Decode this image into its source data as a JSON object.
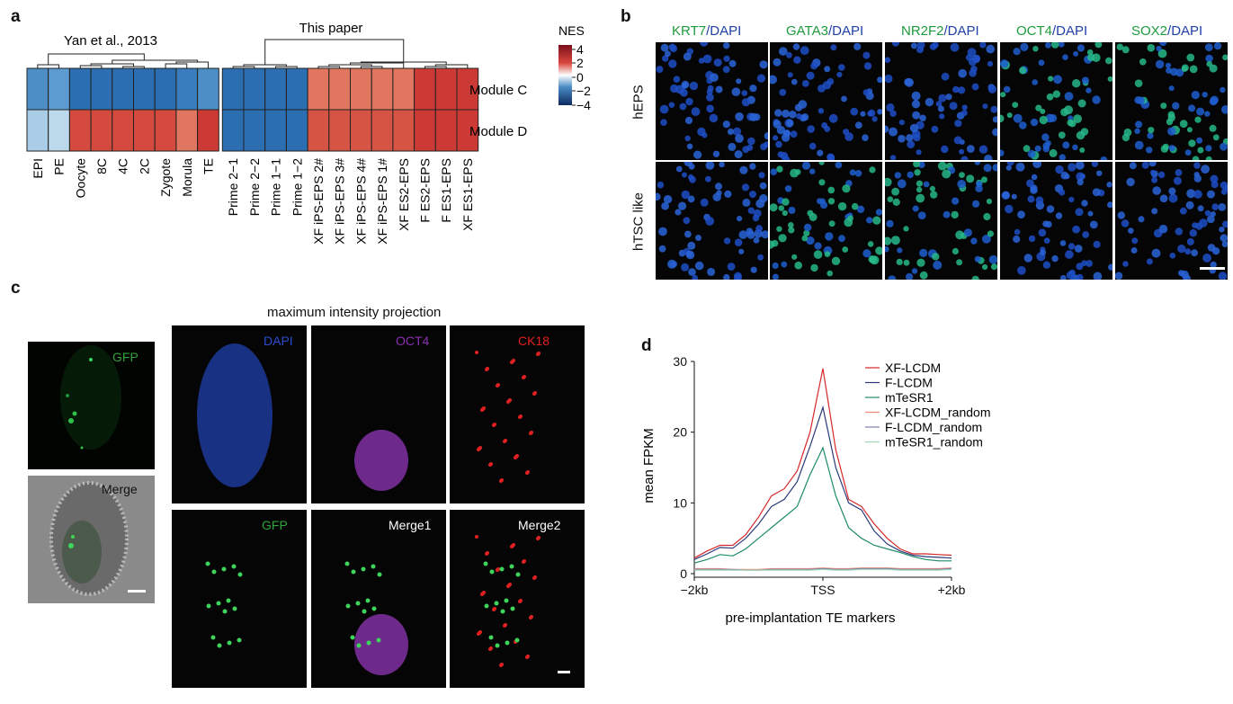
{
  "panels": {
    "a": "a",
    "b": "b",
    "c": "c",
    "d": "d"
  },
  "heatmap": {
    "group1_title": "Yan et al., 2013",
    "group2_title": "This paper",
    "rows": [
      "Module C",
      "Module D"
    ],
    "columns": [
      "EPI",
      "PE",
      "Oocyte",
      "8C",
      "4C",
      "2C",
      "Zygote",
      "Morula",
      "TE",
      "Prime 2−1",
      "Prime 2−2",
      "Prime 1−1",
      "Prime 1−2",
      "XF iPS-EPS 2#",
      "XF iPS-EPS 3#",
      "XF iPS-EPS 4#",
      "XF iPS-EPS 1#",
      "XF ES2-EPS",
      "F ES2-EPS",
      "F ES1-EPS",
      "XF ES1-EPS"
    ],
    "legend_title": "NES",
    "legend_ticks": [
      "4",
      "2",
      "0",
      "−2",
      "−4"
    ],
    "colors": {
      "moduleC": [
        "#4e8ec6",
        "#5c9cd0",
        "#2b6fb2",
        "#2b6fb2",
        "#2b6fb2",
        "#2b6fb2",
        "#2b6fb2",
        "#3a7dbd",
        "#4e8ec6",
        "#2b6fb2",
        "#2b6fb2",
        "#2b6fb2",
        "#2b6fb2",
        "#e0765f",
        "#e0765f",
        "#e0765f",
        "#e0765f",
        "#e0765f",
        "#cc3a35",
        "#cc3a35",
        "#cc3a35"
      ],
      "moduleD": [
        "#a9cde6",
        "#bcd9ec",
        "#d44a3f",
        "#d44a3f",
        "#d44a3f",
        "#d44a3f",
        "#d44a3f",
        "#e0765f",
        "#cc3a35",
        "#2b6fb2",
        "#2b6fb2",
        "#2b6fb2",
        "#2b6fb2",
        "#d65443",
        "#d65443",
        "#d65443",
        "#d65443",
        "#d65443",
        "#cc3a35",
        "#cc3a35",
        "#cc3a35"
      ]
    }
  },
  "panel_b": {
    "columns": [
      {
        "marker": "KRT7",
        "dapi": "/DAPI"
      },
      {
        "marker": "GATA3",
        "dapi": "/DAPI"
      },
      {
        "marker": "NR2F2",
        "dapi": "/DAPI"
      },
      {
        "marker": "OCT4",
        "dapi": "/DAPI"
      },
      {
        "marker": "SOX2",
        "dapi": "/DAPI"
      }
    ],
    "rows": [
      "hEPS",
      "hTSC like"
    ],
    "marker_color": "#1e9a3c",
    "dapi_color": "#1f3fa8"
  },
  "panel_c": {
    "title": "maximum intensity projection",
    "left_labels": [
      "GFP",
      "Merge"
    ],
    "grid_labels": [
      "DAPI",
      "OCT4",
      "CK18",
      "GFP",
      "Merge1",
      "Merge2"
    ],
    "grid_label_colors": [
      "#2b4cc9",
      "#8a2fb0",
      "#e02020",
      "#2fa23a",
      "#ffffff",
      "#ffffff"
    ]
  },
  "chart_data": {
    "type": "line",
    "xlabel": "pre-implantation TE markers",
    "ylabel": "mean FPKM",
    "x_ticks": [
      "−2kb",
      "TSS",
      "+2kb"
    ],
    "y_ticks": [
      0,
      10,
      20,
      30
    ],
    "ylim": [
      0,
      30
    ],
    "x": [
      -2000,
      -1800,
      -1600,
      -1400,
      -1200,
      -1000,
      -800,
      -600,
      -400,
      -200,
      0,
      200,
      400,
      600,
      800,
      1000,
      1200,
      1400,
      1600,
      1800,
      2000
    ],
    "legend_placement": "top-right",
    "series": [
      {
        "name": "XF-LCDM",
        "color": "#d62728",
        "values": [
          2.2,
          3.2,
          4.0,
          4.0,
          5.5,
          8.0,
          11.0,
          12.0,
          14.5,
          20.0,
          29.0,
          17.5,
          10.5,
          9.5,
          7.0,
          5.0,
          3.5,
          2.8,
          2.8,
          2.7,
          2.6
        ]
      },
      {
        "name": "F-LCDM",
        "color": "#2b3a7a",
        "values": [
          2.0,
          2.8,
          3.7,
          3.6,
          5.0,
          7.0,
          9.5,
          10.5,
          13.0,
          18.0,
          23.5,
          15.0,
          10.0,
          9.0,
          6.0,
          4.2,
          3.2,
          2.6,
          2.4,
          2.3,
          2.2
        ]
      },
      {
        "name": "mTeSR1",
        "color": "#1f8a6a",
        "values": [
          1.5,
          2.0,
          2.7,
          2.5,
          3.5,
          5.0,
          6.5,
          8.0,
          9.5,
          14.0,
          17.8,
          11.0,
          6.5,
          5.0,
          4.0,
          3.5,
          3.0,
          2.4,
          2.0,
          1.8,
          1.8
        ]
      },
      {
        "name": "XF-LCDM_random",
        "color": "#e88a7a",
        "values": [
          0.7,
          0.7,
          0.7,
          0.6,
          0.6,
          0.6,
          0.7,
          0.7,
          0.7,
          0.7,
          0.8,
          0.7,
          0.7,
          0.8,
          0.8,
          0.8,
          0.7,
          0.7,
          0.7,
          0.7,
          0.8
        ]
      },
      {
        "name": "F-LCDM_random",
        "color": "#7a7fa8",
        "values": [
          0.6,
          0.6,
          0.6,
          0.6,
          0.5,
          0.5,
          0.6,
          0.6,
          0.6,
          0.6,
          0.7,
          0.6,
          0.6,
          0.7,
          0.7,
          0.7,
          0.6,
          0.6,
          0.6,
          0.6,
          0.7
        ]
      },
      {
        "name": "mTeSR1_random",
        "color": "#9fd6b8",
        "values": [
          0.5,
          0.5,
          0.5,
          0.5,
          0.5,
          0.5,
          0.5,
          0.5,
          0.5,
          0.5,
          0.6,
          0.5,
          0.5,
          0.6,
          0.6,
          0.6,
          0.5,
          0.5,
          0.5,
          0.5,
          0.6
        ]
      }
    ]
  }
}
